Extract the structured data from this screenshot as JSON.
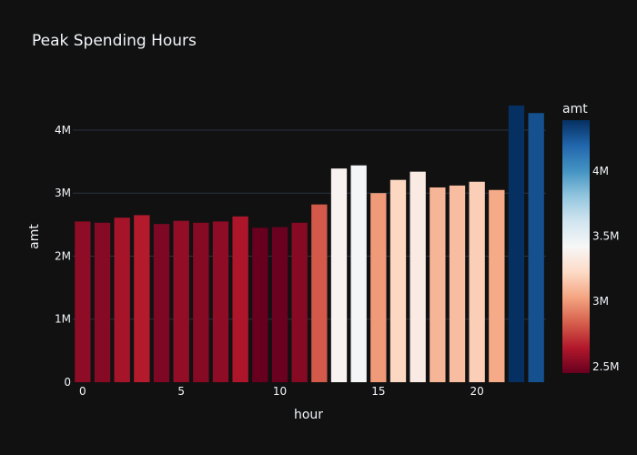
{
  "chart_data": {
    "type": "bar",
    "title": "Peak Spending Hours",
    "xlabel": "hour",
    "ylabel": "amt",
    "x": [
      0,
      1,
      2,
      3,
      4,
      5,
      6,
      7,
      8,
      9,
      10,
      11,
      12,
      13,
      14,
      15,
      16,
      17,
      18,
      19,
      20,
      21,
      22,
      23
    ],
    "values": [
      2550000,
      2530000,
      2610000,
      2650000,
      2510000,
      2560000,
      2530000,
      2550000,
      2630000,
      2450000,
      2460000,
      2530000,
      2820000,
      3390000,
      3440000,
      3000000,
      3210000,
      3340000,
      3090000,
      3120000,
      3180000,
      3050000,
      4390000,
      4270000
    ],
    "xlim": [
      -0.5,
      23.5
    ],
    "ylim": [
      0,
      4620000
    ],
    "x_ticks": [
      0,
      5,
      10,
      15,
      20
    ],
    "x_tick_labels": [
      "0",
      "5",
      "10",
      "15",
      "20"
    ],
    "y_ticks": [
      0,
      1000000,
      2000000,
      3000000,
      4000000
    ],
    "y_tick_labels": [
      "0",
      "1M",
      "2M",
      "3M",
      "4M"
    ],
    "grid": true,
    "colorscale": "RdBu",
    "colorbar": {
      "title": "amt",
      "range": [
        2450000,
        4390000
      ],
      "ticks": [
        2500000,
        3000000,
        3500000,
        4000000
      ],
      "tick_labels": [
        "2.5M",
        "3M",
        "3.5M",
        "4M"
      ]
    }
  }
}
